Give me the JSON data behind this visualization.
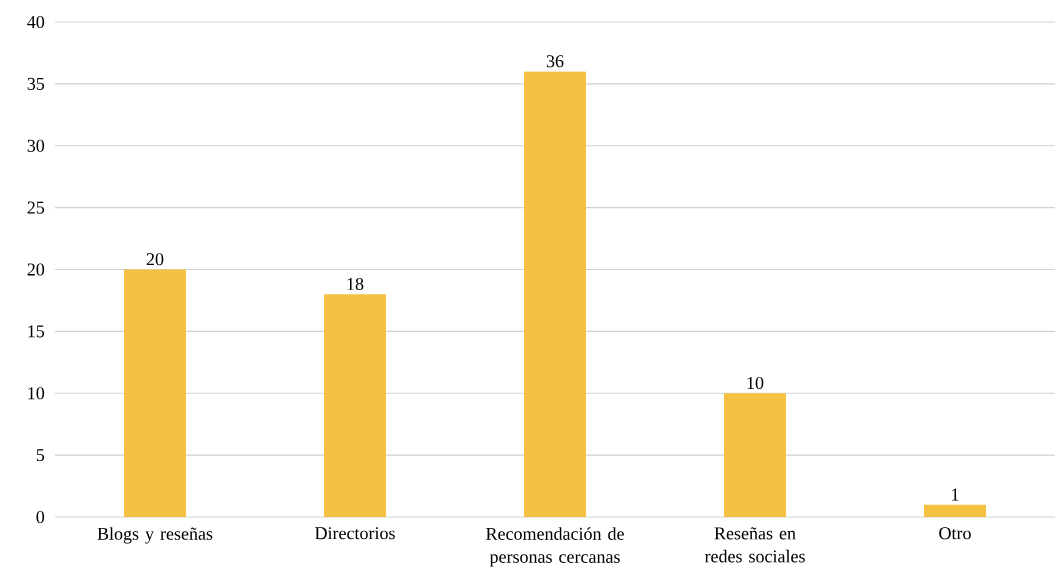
{
  "chart_data": {
    "type": "bar",
    "categories": [
      "Blogs y reseñas",
      "Directorios",
      "Recomendación de personas cercanas",
      "Reseñas en redes sociales",
      "Otro"
    ],
    "values": [
      20,
      18,
      36,
      10,
      1
    ],
    "color": "#f5c142",
    "ylim": [
      0,
      40
    ],
    "yticks": [
      0,
      5,
      10,
      15,
      20,
      25,
      30,
      35,
      40
    ],
    "grid": "y",
    "data_labels": true
  }
}
